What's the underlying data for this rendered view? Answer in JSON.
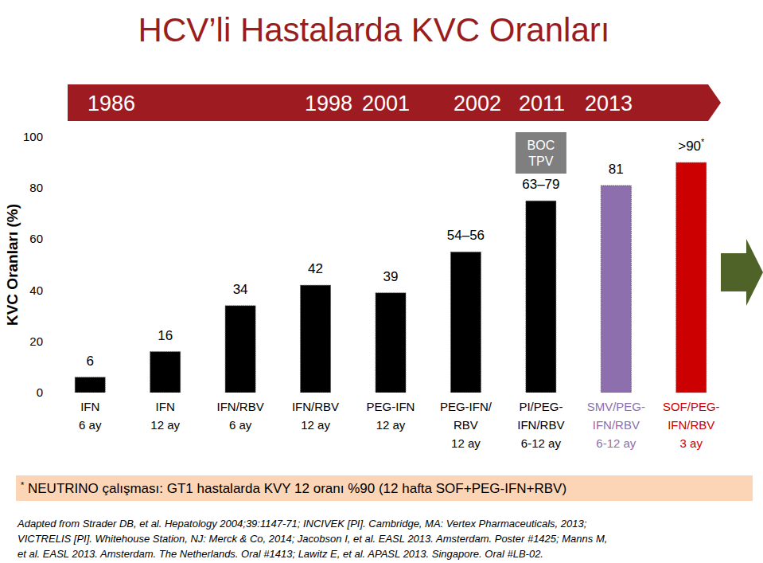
{
  "chart_data": {
    "type": "bar",
    "title": "HCV’li Hastalarda KVC Oranları",
    "timeline": [
      "1986",
      "1998",
      "2001",
      "2002",
      "2011",
      "2013"
    ],
    "y_label": "KVC Oranları (%)",
    "categories": [
      "IFN\n6 ay",
      "IFN\n12 ay",
      "IFN/RBV\n6 ay",
      "IFN/RBV\n12 ay",
      "PEG-IFN\n12 ay",
      "PEG-IFN/\nRBV\n12 ay",
      "PI/PEG-\nIFN/RBV\n6-12 ay",
      "SMV/PEG-\nIFN/RBV\n6-12 ay",
      "SOF/PEG-\nIFN/RBV\n3 ay"
    ],
    "values": [
      6,
      16,
      34,
      42,
      39,
      55,
      75,
      81,
      90
    ],
    "value_labels": [
      "6",
      "16",
      "34",
      "42",
      "39",
      "54–56",
      "63–79",
      "81",
      ">90*"
    ],
    "colors": [
      "#000000",
      "#000000",
      "#000000",
      "#000000",
      "#000000",
      "#000000",
      "#000000",
      "#8e6fae",
      "#cc0000"
    ],
    "ylim": [
      0,
      100
    ],
    "yticks": [
      0,
      20,
      40,
      60,
      80,
      100
    ],
    "grid": false,
    "data_labels": true,
    "annotations": [
      "BOC\nTPV"
    ],
    "footnote": "* NEUTRINO çalışması: GT1 hastalarda KVY 12 oranı %90 (12 hafta SOF+PEG-IFN+RBV)",
    "source": [
      "Adapted from Strader DB, et al. Hepatology 2004;39:1147-71; INCIVEK [PI]. Cambridge, MA: Vertex Pharmaceuticals, 2013;",
      "VICTRELIS [PI]. Whitehouse Station, NJ: Merck & Co, 2014; Jacobson I, et al. EASL 2013. Amsterdam. Poster #1425; Manns M,",
      "et al. EASL 2013. Amsterdam. The Netherlands. Oral #1413; Lawitz E, et al. APASL 2013. Singapore. Oral #LB-02."
    ]
  }
}
